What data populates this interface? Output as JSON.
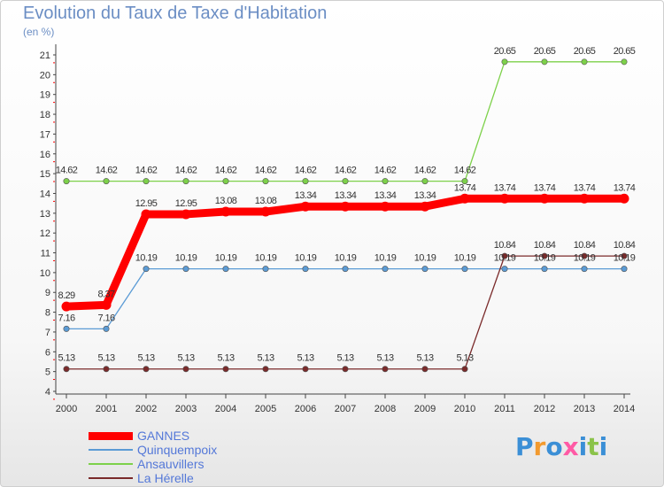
{
  "title": "Evolution du Taux de Taxe d'Habitation",
  "unit": "(en %)",
  "logo": "Proxiti",
  "chart_data": {
    "type": "line",
    "title": "Evolution du Taux de Taxe d'Habitation",
    "ylabel": "(en %)",
    "xlabel": "",
    "x": [
      "2000",
      "2001",
      "2002",
      "2003",
      "2004",
      "2005",
      "2006",
      "2007",
      "2008",
      "2009",
      "2010",
      "2011",
      "2012",
      "2013",
      "2014"
    ],
    "ylim": [
      4,
      21
    ],
    "yticks": [
      4,
      5,
      6,
      7,
      8,
      9,
      10,
      11,
      12,
      13,
      14,
      15,
      16,
      17,
      18,
      19,
      20,
      21
    ],
    "series": [
      {
        "name": "GANNES",
        "color": "#ff0000",
        "width": "thick",
        "values": [
          8.29,
          8.37,
          12.95,
          12.95,
          13.08,
          13.08,
          13.34,
          13.34,
          13.34,
          13.34,
          13.74,
          13.74,
          13.74,
          13.74,
          13.74
        ],
        "labels": [
          "8.29",
          "8.37",
          "12.95",
          "12.95",
          "13.08",
          "13.08",
          "13.34",
          "13.34",
          "13.34",
          "13.34",
          "13.74",
          "13.74",
          "13.74",
          "13.74",
          "13.74"
        ]
      },
      {
        "name": "Quinquempoix",
        "color": "#5b9bd5",
        "width": "thin",
        "values": [
          7.16,
          7.16,
          10.19,
          10.19,
          10.19,
          10.19,
          10.19,
          10.19,
          10.19,
          10.19,
          10.19,
          10.19,
          10.19,
          10.19,
          10.19
        ],
        "labels": [
          "7.16",
          "7.16",
          "10.19",
          "10.19",
          "10.19",
          "10.19",
          "10.19",
          "10.19",
          "10.19",
          "10.19",
          "10.19",
          "10.19",
          "10.19",
          "10.19",
          "10.19"
        ]
      },
      {
        "name": "Ansauvillers",
        "color": "#7dd14a",
        "width": "thin",
        "values": [
          14.62,
          14.62,
          14.62,
          14.62,
          14.62,
          14.62,
          14.62,
          14.62,
          14.62,
          14.62,
          14.62,
          20.65,
          20.65,
          20.65,
          20.65
        ],
        "labels": [
          "14.62",
          "14.62",
          "14.62",
          "14.62",
          "14.62",
          "14.62",
          "14.62",
          "14.62",
          "14.62",
          "14.62",
          "14.62",
          "20.65",
          "20.65",
          "20.65",
          "20.65"
        ]
      },
      {
        "name": "La Hérelle",
        "color": "#7a2a2a",
        "width": "thin",
        "values": [
          5.13,
          5.13,
          5.13,
          5.13,
          5.13,
          5.13,
          5.13,
          5.13,
          5.13,
          5.13,
          5.13,
          10.84,
          10.84,
          10.84,
          10.84
        ],
        "labels": [
          "5.13",
          "5.13",
          "5.13",
          "5.13",
          "5.13",
          "5.13",
          "5.13",
          "5.13",
          "5.13",
          "5.13",
          "5.13",
          "10.84",
          "10.84",
          "10.84",
          "10.84"
        ]
      }
    ],
    "legend_position": "bottom-left"
  }
}
